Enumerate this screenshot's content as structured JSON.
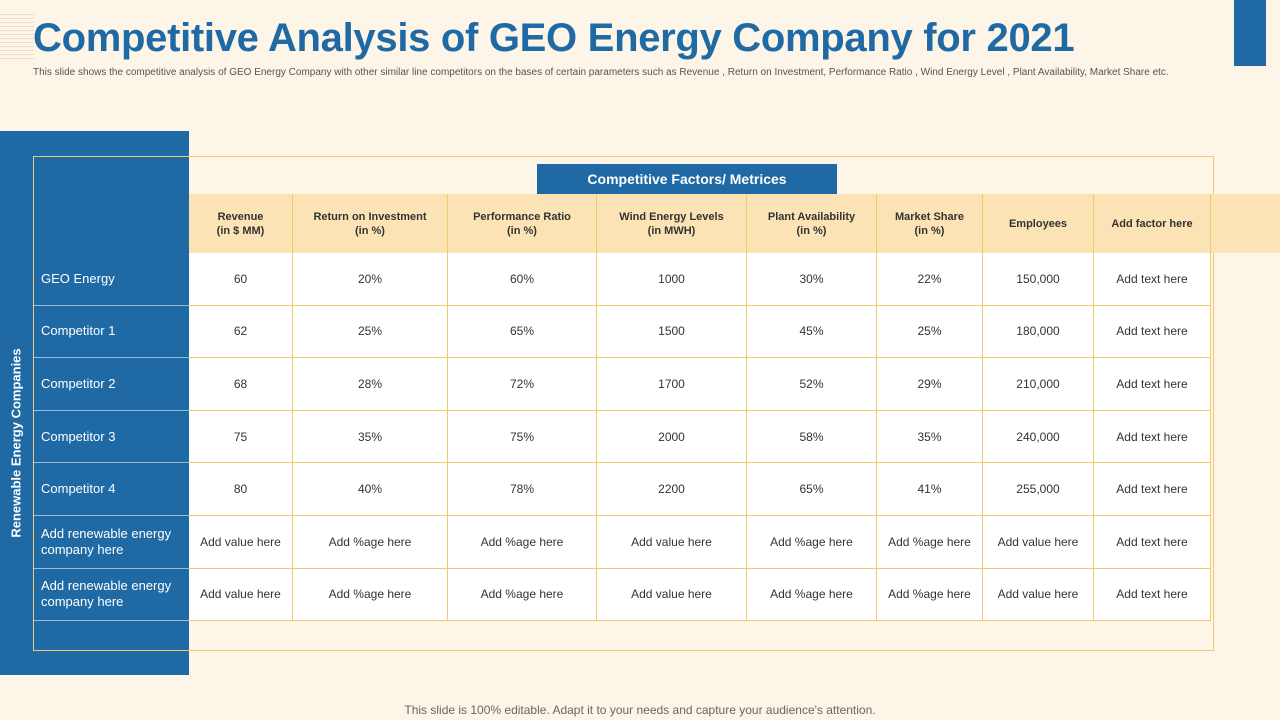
{
  "title": "Competitive Analysis of GEO Energy Company for 2021",
  "subtitle": "This slide shows the competitive analysis of GEO Energy Company with other similar line competitors on the bases of certain parameters such as Revenue , Return on Investment, Performance Ratio , Wind Energy Level , Plant Availability, Market Share etc.",
  "side_label": "Renewable Energy Companies",
  "factors_banner": "Competitive Factors/ Metrices",
  "columns": [
    {
      "line1": "Revenue",
      "line2": "(in $ MM)"
    },
    {
      "line1": "Return on Investment",
      "line2": "(in %)"
    },
    {
      "line1": "Performance Ratio",
      "line2": "(in %)"
    },
    {
      "line1": "Wind Energy Levels",
      "line2": "(in MWH)"
    },
    {
      "line1": "Plant Availability",
      "line2": "(in %)"
    },
    {
      "line1": "Market Share",
      "line2": "(in %)"
    },
    {
      "line1": "Employees",
      "line2": ""
    },
    {
      "line1": "Add factor here",
      "line2": ""
    }
  ],
  "rows": [
    {
      "company": "GEO Energy",
      "values": [
        "60",
        "20%",
        "60%",
        "1000",
        "30%",
        "22%",
        "150,000",
        "Add text here"
      ]
    },
    {
      "company": "Competitor 1",
      "values": [
        "62",
        "25%",
        "65%",
        "1500",
        "45%",
        "25%",
        "180,000",
        "Add text here"
      ]
    },
    {
      "company": "Competitor 2",
      "values": [
        "68",
        "28%",
        "72%",
        "1700",
        "52%",
        "29%",
        "210,000",
        "Add text here"
      ]
    },
    {
      "company": "Competitor 3",
      "values": [
        "75",
        "35%",
        "75%",
        "2000",
        "58%",
        "35%",
        "240,000",
        "Add text here"
      ]
    },
    {
      "company": "Competitor 4",
      "values": [
        "80",
        "40%",
        "78%",
        "2200",
        "65%",
        "41%",
        "255,000",
        "Add text here"
      ]
    },
    {
      "company": "Add renewable energy company here",
      "values": [
        "Add value here",
        "Add %age here",
        "Add %age here",
        "Add value here",
        "Add %age here",
        "Add %age here",
        "Add value here",
        "Add text here"
      ]
    },
    {
      "company": "Add renewable energy company here",
      "values": [
        "Add value here",
        "Add %age here",
        "Add %age here",
        "Add value here",
        "Add %age here",
        "Add %age here",
        "Add value here",
        "Add text here"
      ]
    }
  ],
  "footer": "This slide is 100% editable. Adapt it to your needs and capture your audience's attention.",
  "colors": {
    "accent": "#1f6aa5",
    "header_fill": "#fbe3b6",
    "border": "#f0c870",
    "background": "#fdf5e8"
  }
}
